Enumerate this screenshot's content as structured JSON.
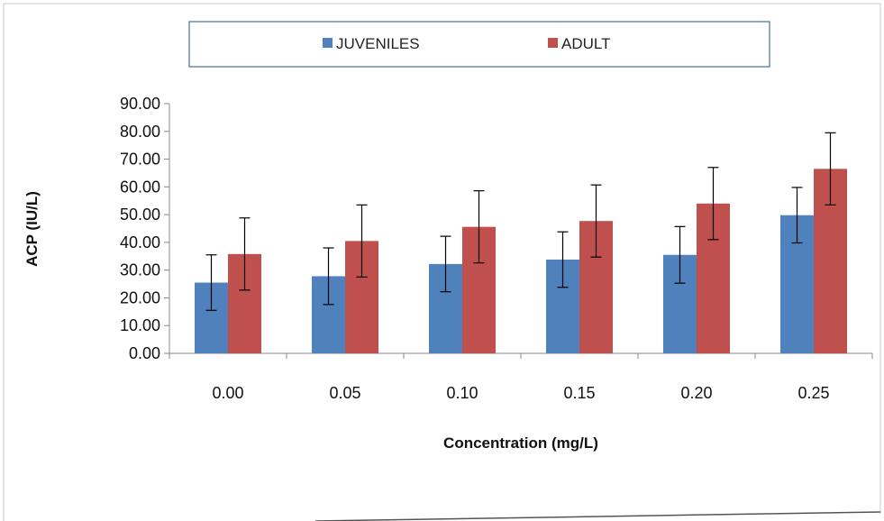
{
  "chart_data": {
    "type": "bar",
    "title": "",
    "xlabel": "Concentration (mg/L)",
    "ylabel": "ACP (IU/L)",
    "ylim": [
      0,
      90
    ],
    "yticks": [
      "0.00",
      "10.00",
      "20.00",
      "30.00",
      "40.00",
      "50.00",
      "60.00",
      "70.00",
      "80.00",
      "90.00"
    ],
    "categories": [
      "0.00",
      "0.05",
      "0.10",
      "0.15",
      "0.20",
      "0.25"
    ],
    "series": [
      {
        "name": "JUVENILES",
        "color": "#4F81BD",
        "values": [
          25.5,
          27.8,
          32.2,
          33.8,
          35.5,
          49.8
        ],
        "error": [
          10.0,
          10.2,
          10.0,
          10.0,
          10.2,
          10.0
        ]
      },
      {
        "name": "ADULT",
        "color": "#C0504D",
        "values": [
          35.8,
          40.5,
          45.6,
          47.7,
          54.0,
          66.5
        ],
        "error": [
          13.0,
          13.0,
          13.0,
          13.0,
          13.0,
          13.0
        ]
      }
    ],
    "legend_position": "top",
    "grid": false
  }
}
